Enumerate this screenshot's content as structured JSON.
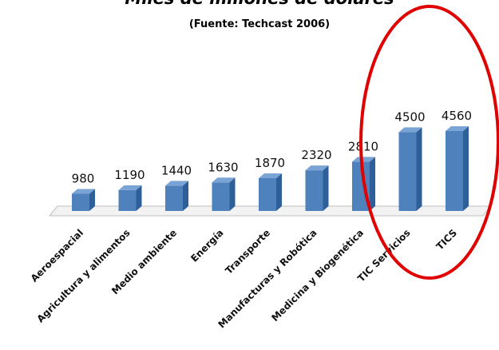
{
  "chart_data": {
    "type": "bar",
    "title": "Miles de millones de dólares",
    "subtitle": "(Fuente: Techcast 2006)",
    "categories": [
      "Aeroespacial",
      "Agricultura y alimentos",
      "Medio ambiente",
      "Energía",
      "Transporte",
      "Manufacturas y Robótica",
      "Medicina y Biogenética",
      "TIC Servicios",
      "TICS"
    ],
    "values": [
      980,
      1190,
      1440,
      1630,
      1870,
      2320,
      2810,
      4500,
      4560
    ],
    "color": "#4f81bd"
  }
}
